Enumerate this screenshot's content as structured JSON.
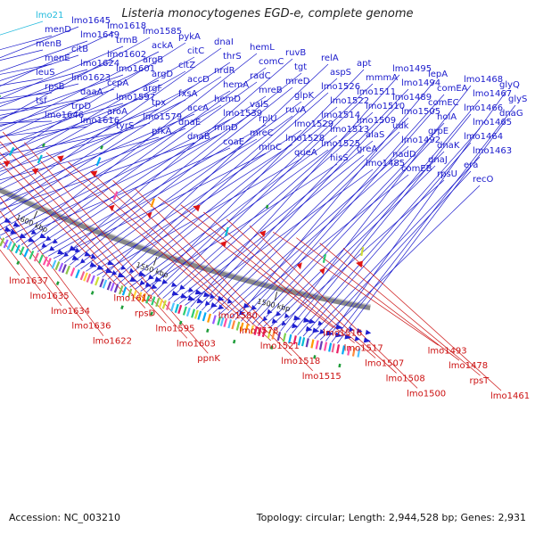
{
  "title": "Listeria monocytogenes EGD-e, complete genome",
  "footer": {
    "accession_label": "Accession:",
    "accession": "NC_003210",
    "topology_label": "Topology:",
    "topology": "circular",
    "length_label": "Length:",
    "length": "2,944,528 bp",
    "genes_label": "Genes:",
    "genes": "2,931"
  },
  "colors": {
    "forward_strand": "#1f1fd0",
    "reverse_strand": "#e01515",
    "forward_label": "#1a1acc",
    "reverse_label": "#cc1111",
    "rna_label": "#22bbdd",
    "backbone": "#888888"
  },
  "scale_ticks": [
    "1700 kbp",
    "1650 kbp",
    "1600 kbp",
    "1550 kbp",
    "1500 kbp"
  ],
  "forward_labels": [
    {
      "text": "lmo21",
      "color": "rna"
    },
    {
      "text": "menD"
    },
    {
      "text": "menB"
    },
    {
      "text": "menE"
    },
    {
      "text": "leuS"
    },
    {
      "text": "rpsB"
    },
    {
      "text": "tsf"
    },
    {
      "text": "lmo1646"
    },
    {
      "text": "lmo1645"
    },
    {
      "text": "lmo1649"
    },
    {
      "text": "citB"
    },
    {
      "text": "lmo1624"
    },
    {
      "text": "lmo1623"
    },
    {
      "text": "daaA"
    },
    {
      "text": "trpD"
    },
    {
      "text": "lmo1616"
    },
    {
      "text": "lmo1618"
    },
    {
      "text": "trmB"
    },
    {
      "text": "lmo1602"
    },
    {
      "text": "lmo1601"
    },
    {
      "text": "ccpA"
    },
    {
      "text": "lmo1597"
    },
    {
      "text": "aroA"
    },
    {
      "text": "tyrS"
    },
    {
      "text": "lmo1585"
    },
    {
      "text": "ackA"
    },
    {
      "text": "argB"
    },
    {
      "text": "argD"
    },
    {
      "text": "argF"
    },
    {
      "text": "tpx"
    },
    {
      "text": "lmo1579"
    },
    {
      "text": "pfkA"
    },
    {
      "text": "pykA"
    },
    {
      "text": "citC"
    },
    {
      "text": "citZ"
    },
    {
      "text": "accD"
    },
    {
      "text": "fxsA"
    },
    {
      "text": "accA"
    },
    {
      "text": "dnaE"
    },
    {
      "text": "dnaB"
    },
    {
      "text": "dnaI"
    },
    {
      "text": "thrS"
    },
    {
      "text": "nrdR"
    },
    {
      "text": "hemA"
    },
    {
      "text": "hemD"
    },
    {
      "text": "lmo1539"
    },
    {
      "text": "minD"
    },
    {
      "text": "coaE"
    },
    {
      "text": "hemL"
    },
    {
      "text": "comC"
    },
    {
      "text": "radC"
    },
    {
      "text": "mreB"
    },
    {
      "text": "valS"
    },
    {
      "text": "rplU"
    },
    {
      "text": "mreC"
    },
    {
      "text": "minC"
    },
    {
      "text": "ruvB"
    },
    {
      "text": "tgt"
    },
    {
      "text": "mreD"
    },
    {
      "text": "glpK"
    },
    {
      "text": "ruvA"
    },
    {
      "text": "lmo1529"
    },
    {
      "text": "lmo1528"
    },
    {
      "text": "queA"
    },
    {
      "text": "relA"
    },
    {
      "text": "aspS"
    },
    {
      "text": "lmo1526"
    },
    {
      "text": "lmo1522"
    },
    {
      "text": "lmo1514"
    },
    {
      "text": "lmo1513"
    },
    {
      "text": "lmo1525"
    },
    {
      "text": "hisS"
    },
    {
      "text": "apt"
    },
    {
      "text": "mmmA"
    },
    {
      "text": "lmo1511"
    },
    {
      "text": "lmo1510"
    },
    {
      "text": "lmo1509"
    },
    {
      "text": "alaS"
    },
    {
      "text": "greA"
    },
    {
      "text": "lmo1485"
    },
    {
      "text": "lmo1495"
    },
    {
      "text": "lmo1494"
    },
    {
      "text": "lmo1489"
    },
    {
      "text": "lmo1505"
    },
    {
      "text": "udk"
    },
    {
      "text": "lmo1492"
    },
    {
      "text": "nadD"
    },
    {
      "text": "comEB"
    },
    {
      "text": "lepA"
    },
    {
      "text": "comEA"
    },
    {
      "text": "comEC"
    },
    {
      "text": "holA"
    },
    {
      "text": "grpE"
    },
    {
      "text": "dnaK"
    },
    {
      "text": "dnaJ"
    },
    {
      "text": "rpsU"
    },
    {
      "text": "lmo1468"
    },
    {
      "text": "lmo1467"
    },
    {
      "text": "lmo1466"
    },
    {
      "text": "lmo1465"
    },
    {
      "text": "lmo1464"
    },
    {
      "text": "lmo1463"
    },
    {
      "text": "era"
    },
    {
      "text": "recO"
    },
    {
      "text": "glyQ"
    },
    {
      "text": "glyS"
    },
    {
      "text": "dnaG"
    }
  ],
  "reverse_labels": [
    {
      "text": "lmo1637"
    },
    {
      "text": "lmo1635"
    },
    {
      "text": "lmo1634"
    },
    {
      "text": "lmo1636"
    },
    {
      "text": "lmo1622"
    },
    {
      "text": "lmo1612"
    },
    {
      "text": "rpsD"
    },
    {
      "text": "lmo1595"
    },
    {
      "text": "lmo1603"
    },
    {
      "text": "ppnK"
    },
    {
      "text": "lmo1580"
    },
    {
      "text": "lmo1578"
    },
    {
      "text": "lmo1521"
    },
    {
      "text": "lmo1518"
    },
    {
      "text": "lmo1515"
    },
    {
      "text": "lmo1516"
    },
    {
      "text": "lmo1517"
    },
    {
      "text": "lmo1507"
    },
    {
      "text": "lmo1508"
    },
    {
      "text": "lmo1500"
    },
    {
      "text": "lmo1493"
    },
    {
      "text": "lmo1478"
    },
    {
      "text": "rpsT"
    },
    {
      "text": "lmo1461"
    }
  ]
}
